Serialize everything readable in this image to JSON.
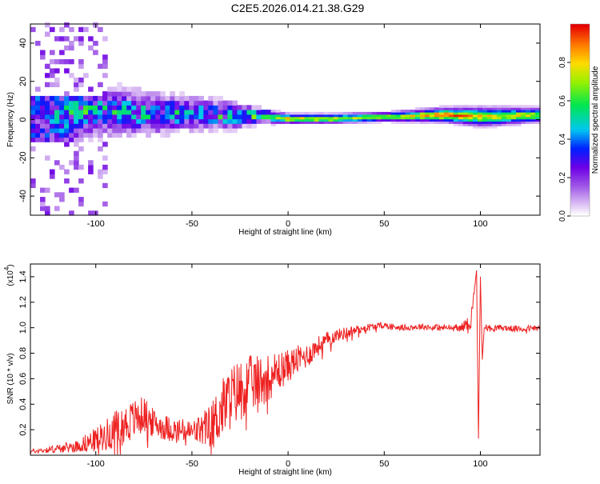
{
  "title": "C2E5.2026.014.21.38.G29",
  "chart_data": [
    {
      "type": "heatmap",
      "title": "",
      "xlabel": "Height of straight line (km)",
      "ylabel": "Frequency (Hz)",
      "xlim": [
        -134,
        131
      ],
      "ylim": [
        -50,
        50
      ],
      "xticks": [
        -100,
        -50,
        0,
        50,
        100
      ],
      "yticks": [
        -40,
        -20,
        0,
        20,
        40
      ],
      "colorbar": {
        "label": "Normalized spectral amplitude",
        "range": [
          0,
          1
        ],
        "ticks": [
          "0.0",
          "0.2",
          "0.4",
          "0.6",
          "0.8"
        ],
        "tick_values": [
          0,
          0.2,
          0.4,
          0.6,
          0.8
        ]
      },
      "ridge_description": "energy concentrated near 0 Hz; broad noisy spread below -20 km, narrow coherent band above 0 km",
      "band_samples": {
        "x": [
          -130,
          -110,
          -90,
          -70,
          -50,
          -30,
          -15,
          0,
          20,
          50,
          80,
          100,
          130
        ],
        "center_freq_hz": [
          2,
          3,
          3,
          2,
          2,
          1,
          1,
          0,
          0,
          1,
          2,
          1,
          2
        ],
        "half_width_hz": [
          40,
          12,
          10,
          9,
          7,
          6,
          3,
          2,
          2,
          2,
          3,
          4,
          3
        ],
        "peak_amplitude": [
          0.35,
          0.55,
          0.5,
          0.5,
          0.5,
          0.55,
          0.6,
          0.85,
          0.8,
          0.7,
          0.95,
          0.8,
          0.75
        ]
      }
    },
    {
      "type": "line",
      "title": "",
      "xlabel": "Height of straight line (km)",
      "ylabel": "SNR (10 * v/v)",
      "y_multiplier": "(x10",
      "y_multiplier_exp": "4",
      "y_multiplier_close": ")",
      "xlim": [
        -134,
        131
      ],
      "ylim": [
        0,
        1.5
      ],
      "xticks": [
        -100,
        -50,
        0,
        50,
        100
      ],
      "yticks": [
        0.2,
        0.4,
        0.6,
        0.8,
        1.0,
        1.2,
        1.4
      ],
      "ytick_labels": [
        "0.2",
        "0.4",
        "0.6",
        "0.8",
        "1.0",
        "1.2",
        "1.4"
      ],
      "series": [
        {
          "name": "SNR",
          "color": "#ee2222",
          "x": [
            -134,
            -120,
            -110,
            -100,
            -90,
            -85,
            -80,
            -75,
            -70,
            -60,
            -50,
            -45,
            -40,
            -35,
            -30,
            -25,
            -20,
            -15,
            -10,
            -5,
            0,
            5,
            10,
            15,
            20,
            25,
            30,
            40,
            50,
            60,
            70,
            80,
            90,
            95,
            98,
            99,
            100,
            101,
            102,
            105,
            110,
            120,
            131
          ],
          "y": [
            0.03,
            0.05,
            0.07,
            0.12,
            0.2,
            0.24,
            0.28,
            0.32,
            0.25,
            0.2,
            0.18,
            0.2,
            0.22,
            0.35,
            0.45,
            0.52,
            0.56,
            0.58,
            0.62,
            0.66,
            0.7,
            0.75,
            0.78,
            0.85,
            0.9,
            0.94,
            0.96,
            1.0,
            1.02,
            1.0,
            1.01,
            1.0,
            1.0,
            1.05,
            1.45,
            0.13,
            1.4,
            0.75,
            1.0,
            1.0,
            1.0,
            0.99,
            1.0
          ],
          "noise": [
            0.01,
            0.02,
            0.03,
            0.06,
            0.09,
            0.1,
            0.1,
            0.09,
            0.07,
            0.06,
            0.06,
            0.08,
            0.12,
            0.15,
            0.16,
            0.15,
            0.14,
            0.13,
            0.12,
            0.1,
            0.08,
            0.07,
            0.06,
            0.05,
            0.04,
            0.03,
            0.03,
            0.02,
            0.015,
            0.015,
            0.015,
            0.015,
            0.02,
            0.04,
            0.0,
            0.0,
            0.0,
            0.06,
            0.02,
            0.015,
            0.015,
            0.015,
            0.015
          ]
        }
      ]
    }
  ]
}
